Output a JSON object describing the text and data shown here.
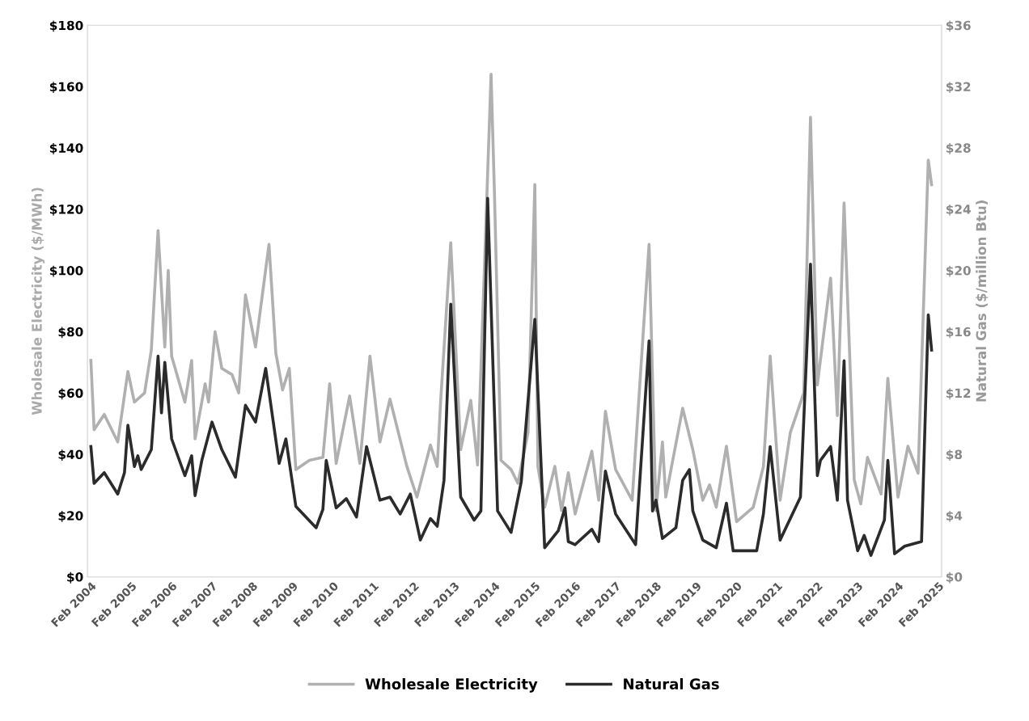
{
  "chart_data": {
    "type": "line",
    "ylabel": "Wholesale Electricity ($/MWh)",
    "y2label": "Natural Gas ($/million Btu)",
    "xlim": [
      "2004-01",
      "2025-03"
    ],
    "xticks": [
      {
        "value": "2004-02",
        "label": "Feb 2004"
      },
      {
        "value": "2005-02",
        "label": "Feb 2005"
      },
      {
        "value": "2006-02",
        "label": "Feb 2006"
      },
      {
        "value": "2007-02",
        "label": "Feb 2007"
      },
      {
        "value": "2008-02",
        "label": "Feb 2008"
      },
      {
        "value": "2009-02",
        "label": "Feb 2009"
      },
      {
        "value": "2010-02",
        "label": "Feb 2010"
      },
      {
        "value": "2011-02",
        "label": "Feb 2011"
      },
      {
        "value": "2012-02",
        "label": "Feb 2012"
      },
      {
        "value": "2013-02",
        "label": "Feb 2013"
      },
      {
        "value": "2014-02",
        "label": "Feb 2014"
      },
      {
        "value": "2015-02",
        "label": "Feb 2015"
      },
      {
        "value": "2016-02",
        "label": "Feb 2016"
      },
      {
        "value": "2017-02",
        "label": "Feb 2017"
      },
      {
        "value": "2018-02",
        "label": "Feb 2018"
      },
      {
        "value": "2019-02",
        "label": "Feb 2019"
      },
      {
        "value": "2020-02",
        "label": "Feb 2020"
      },
      {
        "value": "2021-02",
        "label": "Feb 2021"
      },
      {
        "value": "2022-02",
        "label": "Feb 2022"
      },
      {
        "value": "2023-02",
        "label": "Feb 2023"
      },
      {
        "value": "2024-02",
        "label": "Feb 2024"
      },
      {
        "value": "2025-02",
        "label": "Feb 2025"
      }
    ],
    "ylim": [
      0,
      180
    ],
    "yticks": [
      {
        "value": 0,
        "label": "$0"
      },
      {
        "value": 20,
        "label": "$20"
      },
      {
        "value": 40,
        "label": "$40"
      },
      {
        "value": 60,
        "label": "$60"
      },
      {
        "value": 80,
        "label": "$80"
      },
      {
        "value": 100,
        "label": "$100"
      },
      {
        "value": 120,
        "label": "$120"
      },
      {
        "value": 140,
        "label": "$140"
      },
      {
        "value": 160,
        "label": "$160"
      },
      {
        "value": 180,
        "label": "$180"
      }
    ],
    "y2lim": [
      0,
      36
    ],
    "y2ticks": [
      {
        "value": 0,
        "label": "$0"
      },
      {
        "value": 4,
        "label": "$4"
      },
      {
        "value": 8,
        "label": "$8"
      },
      {
        "value": 12,
        "label": "$12"
      },
      {
        "value": 16,
        "label": "$16"
      },
      {
        "value": 20,
        "label": "$20"
      },
      {
        "value": 24,
        "label": "$24"
      },
      {
        "value": 28,
        "label": "$28"
      },
      {
        "value": 32,
        "label": "$32"
      },
      {
        "value": 36,
        "label": "$36"
      }
    ],
    "grid": false,
    "legend": "bottom",
    "line_style": "solid",
    "series": [
      {
        "name": "Wholesale Electricity",
        "color": "#b0b0b0",
        "axis": "y",
        "x": [
          "2004-02",
          "2004-03",
          "2004-06",
          "2004-10",
          "2005-01",
          "2005-03",
          "2005-06",
          "2005-08",
          "2005-10",
          "2005-12",
          "2006-01",
          "2006-02",
          "2006-06",
          "2006-08",
          "2006-09",
          "2006-12",
          "2007-01",
          "2007-03",
          "2007-05",
          "2007-08",
          "2007-10",
          "2007-12",
          "2008-03",
          "2008-07",
          "2008-09",
          "2008-11",
          "2009-01",
          "2009-03",
          "2009-07",
          "2009-11",
          "2010-01",
          "2010-03",
          "2010-07",
          "2010-10",
          "2011-01",
          "2011-04",
          "2011-07",
          "2011-12",
          "2012-03",
          "2012-07",
          "2012-09",
          "2012-10",
          "2013-01",
          "2013-04",
          "2013-07",
          "2013-09",
          "2014-01",
          "2014-02",
          "2014-04",
          "2014-07",
          "2014-09",
          "2014-12",
          "2015-02",
          "2015-03",
          "2015-05",
          "2015-08",
          "2015-10",
          "2015-12",
          "2016-02",
          "2016-07",
          "2016-09",
          "2016-11",
          "2017-02",
          "2017-07",
          "2017-12",
          "2018-02",
          "2018-04",
          "2018-05",
          "2018-10",
          "2019-01",
          "2019-04",
          "2019-06",
          "2019-08",
          "2019-11",
          "2020-02",
          "2020-07",
          "2020-10",
          "2020-12",
          "2021-03",
          "2021-06",
          "2021-10",
          "2021-12",
          "2022-02",
          "2022-06",
          "2022-08",
          "2022-10",
          "2023-01",
          "2023-03",
          "2023-05",
          "2023-09",
          "2023-11",
          "2024-02",
          "2024-05",
          "2024-08",
          "2024-11",
          "2024-12"
        ],
        "values": [
          70.6,
          48,
          53,
          44,
          67,
          57,
          60,
          74,
          113,
          75,
          100,
          72,
          57,
          70.6,
          45,
          63,
          57,
          80,
          68,
          66,
          60,
          92,
          75,
          108.5,
          73,
          61,
          68,
          35,
          38,
          39,
          63,
          37,
          59,
          37,
          72,
          44,
          58,
          36,
          26,
          43,
          36,
          57,
          109,
          41.5,
          57.6,
          36.5,
          164,
          124.6,
          38,
          35,
          30.5,
          47,
          128,
          36,
          22.7,
          36,
          21.6,
          34,
          20.5,
          41,
          25,
          54,
          35,
          25,
          108.5,
          21.6,
          44,
          26,
          55,
          41.5,
          25,
          30,
          22.7,
          42.6,
          18,
          22.7,
          36,
          72,
          25,
          47,
          60,
          150,
          62.6,
          97.5,
          52.6,
          122,
          31.6,
          23.8,
          39,
          27,
          64.8,
          26,
          42.6,
          33.8,
          136,
          128
        ]
      },
      {
        "name": "Natural Gas",
        "color": "#2b2b2b",
        "axis": "y2",
        "x": [
          "2004-02",
          "2004-03",
          "2004-06",
          "2004-10",
          "2004-12",
          "2005-01",
          "2005-03",
          "2005-04",
          "2005-05",
          "2005-08",
          "2005-10",
          "2005-11",
          "2005-12",
          "2006-02",
          "2006-06",
          "2006-08",
          "2006-09",
          "2006-11",
          "2007-02",
          "2007-05",
          "2007-09",
          "2007-12",
          "2008-03",
          "2008-06",
          "2008-10",
          "2008-12",
          "2009-03",
          "2009-09",
          "2009-11",
          "2009-12",
          "2010-03",
          "2010-06",
          "2010-09",
          "2010-12",
          "2011-04",
          "2011-07",
          "2011-10",
          "2012-01",
          "2012-04",
          "2012-07",
          "2012-09",
          "2012-11",
          "2013-01",
          "2013-04",
          "2013-08",
          "2013-10",
          "2013-12",
          "2014-03",
          "2014-07",
          "2014-10",
          "2015-02",
          "2015-05",
          "2015-09",
          "2015-11",
          "2015-12",
          "2016-02",
          "2016-07",
          "2016-09",
          "2016-11",
          "2017-02",
          "2017-08",
          "2017-12",
          "2018-01",
          "2018-02",
          "2018-04",
          "2018-08",
          "2018-10",
          "2018-12",
          "2019-01",
          "2019-04",
          "2019-08",
          "2019-11",
          "2020-01",
          "2020-08",
          "2020-10",
          "2020-12",
          "2021-03",
          "2021-09",
          "2021-12",
          "2022-02",
          "2022-03",
          "2022-06",
          "2022-08",
          "2022-10",
          "2022-11",
          "2023-02",
          "2023-04",
          "2023-06",
          "2023-10",
          "2023-11",
          "2024-01",
          "2024-04",
          "2024-09",
          "2024-11",
          "2024-12"
        ],
        "values": [
          8.5,
          6.1,
          6.8,
          5.4,
          6.8,
          9.9,
          7.2,
          7.9,
          7.0,
          8.3,
          14.4,
          10.7,
          14.0,
          9.0,
          6.6,
          7.9,
          5.3,
          7.6,
          10.1,
          8.3,
          6.5,
          11.2,
          10.1,
          13.6,
          7.4,
          9.0,
          4.6,
          3.2,
          4.4,
          7.6,
          4.5,
          5.1,
          3.9,
          8.5,
          5.0,
          5.2,
          4.1,
          5.4,
          2.4,
          3.8,
          3.3,
          6.3,
          17.8,
          5.2,
          3.7,
          4.3,
          24.7,
          4.3,
          2.9,
          6.2,
          16.8,
          1.9,
          3.0,
          4.5,
          2.3,
          2.1,
          3.1,
          2.3,
          6.9,
          4.1,
          2.1,
          15.4,
          4.3,
          5.0,
          2.5,
          3.2,
          6.3,
          7.0,
          4.3,
          2.4,
          1.9,
          4.8,
          1.7,
          1.7,
          4.1,
          8.5,
          2.4,
          5.2,
          20.4,
          6.6,
          7.6,
          8.5,
          5.0,
          14.1,
          5.0,
          1.7,
          2.7,
          1.4,
          3.7,
          7.6,
          1.5,
          2.0,
          2.3,
          17.1,
          14.8
        ]
      }
    ]
  }
}
